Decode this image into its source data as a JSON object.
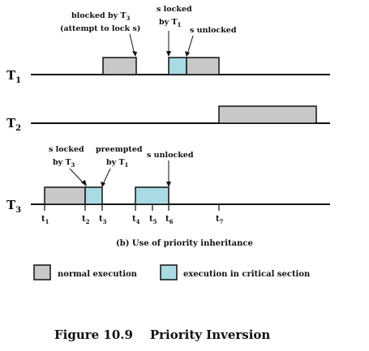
{
  "rows": {
    "t1": {
      "label": "T",
      "sub": "1"
    },
    "t2": {
      "label": "T",
      "sub": "2"
    },
    "t3": {
      "label": "T",
      "sub": "3"
    }
  },
  "annotations": {
    "blocked_line1_a": "blocked by T",
    "blocked_line1_sub": "3",
    "blocked_line2": "(attempt to lock s)",
    "s_locked_t1_line1": "s locked",
    "s_locked_t1_line2_a": "by T",
    "s_locked_t1_line2_sub": "1",
    "s_unlocked_t1": "s unlocked",
    "s_locked_t3_line1": "s locked",
    "s_locked_t3_line2_a": "by T",
    "s_locked_t3_line2_sub": "3",
    "preempted_line1": "preempted",
    "preempted_line2_a": "by T",
    "preempted_line2_sub": "1",
    "s_unlocked_t3": "s unlocked"
  },
  "ticks": [
    {
      "t": "t",
      "sub": "1"
    },
    {
      "t": "t",
      "sub": "2"
    },
    {
      "t": "t",
      "sub": "3"
    },
    {
      "t": "t",
      "sub": "4"
    },
    {
      "t": "t",
      "sub": "5"
    },
    {
      "t": "t",
      "sub": "6"
    },
    {
      "t": "t",
      "sub": "7"
    }
  ],
  "caption": "(b) Use of priority inheritance",
  "legend": {
    "normal": "normal execution",
    "critical": "execution in critical section"
  },
  "figure_title": "Figure 10.9    Priority Inversion",
  "colors": {
    "normal_execution": "#c8c8c8",
    "critical_section": "#a9dbe4"
  }
}
